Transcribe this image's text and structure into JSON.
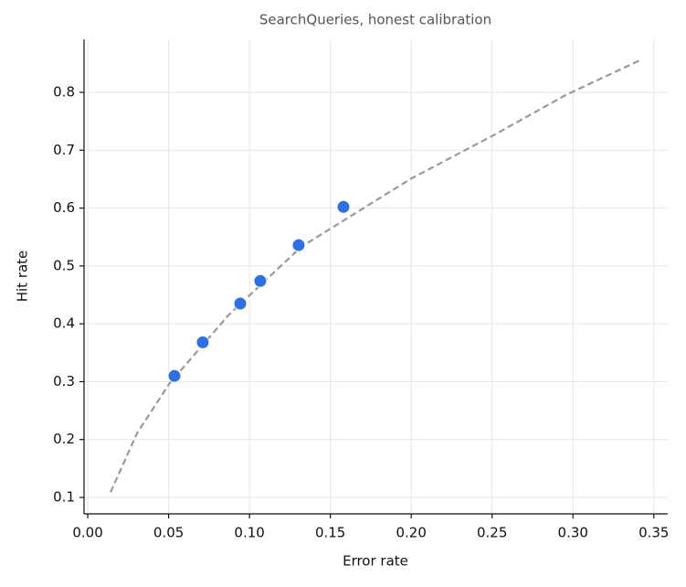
{
  "chart_data": {
    "type": "scatter",
    "title": "SearchQueries, honest calibration",
    "xlabel": "Error rate",
    "ylabel": "Hit rate",
    "xlim": [
      -0.0023,
      0.3586
    ],
    "ylim": [
      0.0716,
      0.8916
    ],
    "xticks": [
      {
        "value": 0,
        "label": "0.00"
      },
      0.05,
      {
        "value": 0.1,
        "label": "0.10"
      },
      0.15,
      {
        "value": 0.2,
        "label": "0.20"
      },
      0.25,
      {
        "value": 0.3,
        "label": "0.30"
      },
      0.35
    ],
    "yticks": [
      0.1,
      0.2,
      0.3,
      0.4,
      0.5,
      0.6,
      0.7,
      0.8
    ],
    "grid": true,
    "series": [
      {
        "type": "line",
        "color": "#999999",
        "dashed": true,
        "x": [
          0.0141,
          0.0305,
          0.0503,
          0.087,
          0.132,
          0.2,
          0.251,
          0.296,
          0.342
        ],
        "values": [
          0.109,
          0.211,
          0.296,
          0.415,
          0.533,
          0.651,
          0.726,
          0.796,
          0.856
        ]
      },
      {
        "type": "scatter",
        "color": "#2f6fe4",
        "x": [
          0.0536,
          0.0711,
          0.0943,
          0.1067,
          0.1304,
          0.1581
        ],
        "values": [
          0.31,
          0.368,
          0.435,
          0.474,
          0.536,
          0.602
        ]
      }
    ]
  }
}
